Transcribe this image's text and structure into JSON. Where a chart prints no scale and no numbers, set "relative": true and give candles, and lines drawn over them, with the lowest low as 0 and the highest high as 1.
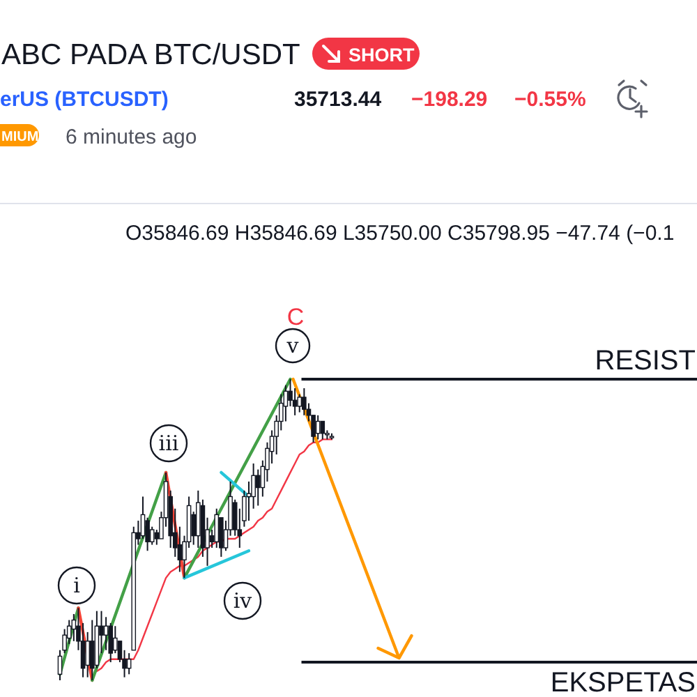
{
  "chart_data": {
    "type": "candlestick",
    "title": "ABC PADA BTC/USDT",
    "relative": true,
    "color": "#131722",
    "categories": [
      null,
      null,
      null,
      null,
      null,
      null,
      null,
      null,
      null,
      null,
      null,
      null,
      null,
      null,
      null,
      null,
      null,
      null,
      null,
      null,
      null,
      null,
      null,
      null,
      null,
      null,
      null,
      null,
      null,
      null,
      null,
      null,
      null,
      null,
      null,
      null,
      null,
      null,
      null,
      null,
      null,
      null,
      null,
      null,
      null,
      null,
      null,
      null,
      null,
      null,
      null,
      null,
      null,
      null,
      null,
      null,
      null,
      null,
      null,
      null
    ],
    "ohlc": [
      [
        0.02,
        0.1,
        0.0,
        0.08
      ],
      [
        0.1,
        0.17,
        0.09,
        0.15
      ],
      [
        0.14,
        0.2,
        0.12,
        0.18
      ],
      [
        0.17,
        0.22,
        0.13,
        0.2
      ],
      [
        0.18,
        0.24,
        0.1,
        0.13
      ],
      [
        0.13,
        0.19,
        0.01,
        0.04
      ],
      [
        0.05,
        0.16,
        0.01,
        0.13
      ],
      [
        0.13,
        0.2,
        0.0,
        0.04
      ],
      [
        0.05,
        0.23,
        0.04,
        0.18
      ],
      [
        0.18,
        0.23,
        0.09,
        0.15
      ],
      [
        0.15,
        0.21,
        0.1,
        0.18
      ],
      [
        0.18,
        0.19,
        0.06,
        0.09
      ],
      [
        0.1,
        0.18,
        0.09,
        0.14
      ],
      [
        0.13,
        0.13,
        0.06,
        0.07
      ],
      [
        0.07,
        0.1,
        0.01,
        0.04
      ],
      [
        0.04,
        0.09,
        0.02,
        0.07
      ],
      [
        0.1,
        0.51,
        0.1,
        0.49
      ],
      [
        0.49,
        0.53,
        0.45,
        0.47
      ],
      [
        0.48,
        0.61,
        0.47,
        0.55
      ],
      [
        0.53,
        0.54,
        0.43,
        0.46
      ],
      [
        0.46,
        0.51,
        0.45,
        0.5
      ],
      [
        0.49,
        0.5,
        0.45,
        0.47
      ],
      [
        0.47,
        0.56,
        0.47,
        0.54
      ],
      [
        0.54,
        0.69,
        0.51,
        0.66
      ],
      [
        0.61,
        0.63,
        0.44,
        0.48
      ],
      [
        0.49,
        0.57,
        0.41,
        0.44
      ],
      [
        0.45,
        0.51,
        0.36,
        0.4
      ],
      [
        0.4,
        0.48,
        0.34,
        0.46
      ],
      [
        0.46,
        0.61,
        0.44,
        0.58
      ],
      [
        0.55,
        0.56,
        0.45,
        0.48
      ],
      [
        0.48,
        0.63,
        0.44,
        0.59
      ],
      [
        0.58,
        0.6,
        0.41,
        0.44
      ],
      [
        0.44,
        0.54,
        0.38,
        0.5
      ],
      [
        0.48,
        0.5,
        0.44,
        0.46
      ],
      [
        0.46,
        0.57,
        0.44,
        0.55
      ],
      [
        0.54,
        0.54,
        0.41,
        0.44
      ],
      [
        0.44,
        0.53,
        0.43,
        0.5
      ],
      [
        0.5,
        0.66,
        0.48,
        0.61
      ],
      [
        0.59,
        0.6,
        0.48,
        0.5
      ],
      [
        0.5,
        0.57,
        0.44,
        0.48
      ],
      [
        0.53,
        0.63,
        0.51,
        0.61
      ],
      [
        0.61,
        0.66,
        0.53,
        0.62
      ],
      [
        0.61,
        0.72,
        0.57,
        0.68
      ],
      [
        0.68,
        0.7,
        0.58,
        0.64
      ],
      [
        0.64,
        0.73,
        0.61,
        0.71
      ],
      [
        0.7,
        0.79,
        0.66,
        0.77
      ],
      [
        0.76,
        0.83,
        0.72,
        0.81
      ],
      [
        0.81,
        0.88,
        0.75,
        0.86
      ],
      [
        0.86,
        0.95,
        0.83,
        0.92
      ],
      [
        0.91,
        0.98,
        0.86,
        0.96
      ],
      [
        0.96,
        1.0,
        0.91,
        0.93
      ],
      [
        0.93,
        0.97,
        0.88,
        0.91
      ],
      [
        0.91,
        0.95,
        0.89,
        0.94
      ],
      [
        0.94,
        0.97,
        0.88,
        0.9
      ],
      [
        0.9,
        0.92,
        0.86,
        0.88
      ],
      [
        0.88,
        0.88,
        0.79,
        0.81
      ],
      [
        0.82,
        0.88,
        0.8,
        0.86
      ],
      [
        0.86,
        0.86,
        0.8,
        0.82
      ],
      [
        0.82,
        0.83,
        0.8,
        0.82
      ],
      [
        0.81,
        0.82,
        0.8,
        0.81
      ]
    ],
    "series": [
      {
        "type": "line",
        "color": "#f23645",
        "values": [
          null,
          null,
          null,
          null,
          null,
          null,
          null,
          null,
          0.03,
          0.04,
          0.06,
          0.07,
          0.07,
          0.07,
          0.07,
          0.07,
          0.07,
          0.1,
          0.14,
          0.18,
          0.22,
          0.26,
          0.3,
          0.34,
          0.36,
          0.37,
          0.38,
          0.38,
          0.39,
          0.4,
          0.41,
          0.43,
          0.44,
          0.45,
          0.46,
          0.46,
          0.47,
          0.47,
          0.47,
          0.48,
          0.49,
          0.5,
          0.51,
          0.53,
          0.54,
          0.56,
          0.57,
          0.6,
          0.63,
          0.66,
          0.69,
          0.72,
          0.75,
          0.76,
          0.78,
          0.79,
          0.79,
          0.8,
          0.8,
          0.8
        ]
      },
      {
        "type": "line",
        "color": "#43a047",
        "values": [
          0.02,
          null,
          null,
          null,
          0.24,
          null,
          null,
          null,
          null,
          null,
          null,
          null,
          null,
          null,
          null,
          null,
          null,
          null,
          null,
          null,
          null,
          null,
          null,
          null,
          null,
          null,
          null,
          null,
          null,
          null,
          null,
          null,
          null,
          null,
          null,
          null,
          null,
          null,
          null,
          null,
          null,
          null,
          null,
          null,
          null,
          null,
          null,
          null,
          null,
          null,
          null,
          null,
          null,
          null,
          null,
          null,
          null,
          null,
          null,
          null
        ]
      },
      {
        "type": "line",
        "color": "#f44336",
        "values": [
          null,
          null,
          null,
          null,
          0.24,
          null,
          null,
          0.0,
          null,
          null,
          null,
          null,
          null,
          null,
          null,
          null,
          null,
          null,
          null,
          null,
          null,
          null,
          null,
          null,
          null,
          null,
          null,
          null,
          null,
          null,
          null,
          null,
          null,
          null,
          null,
          null,
          null,
          null,
          null,
          null,
          null,
          null,
          null,
          null,
          null,
          null,
          null,
          null,
          null,
          null,
          null,
          null,
          null,
          null,
          null,
          null,
          null,
          null,
          null,
          null
        ]
      },
      {
        "type": "line",
        "color": "#43a047",
        "values": [
          null,
          null,
          null,
          null,
          null,
          null,
          null,
          0.0,
          null,
          null,
          null,
          null,
          null,
          null,
          null,
          null,
          null,
          null,
          null,
          null,
          null,
          null,
          null,
          0.69,
          null,
          null,
          null,
          null,
          null,
          null,
          null,
          null,
          null,
          null,
          null,
          null,
          null,
          null,
          null,
          null,
          null,
          null,
          null,
          null,
          null,
          null,
          null,
          null,
          null,
          null,
          null,
          null,
          null,
          null,
          null,
          null,
          null,
          null,
          null,
          null
        ]
      },
      {
        "type": "line",
        "color": "#f44336",
        "values": [
          null,
          null,
          null,
          null,
          null,
          null,
          null,
          null,
          null,
          null,
          null,
          null,
          null,
          null,
          null,
          null,
          null,
          null,
          null,
          null,
          null,
          null,
          null,
          0.69,
          null,
          null,
          null,
          0.34,
          null,
          null,
          null,
          null,
          null,
          null,
          null,
          null,
          null,
          null,
          null,
          null,
          null,
          null,
          null,
          null,
          null,
          null,
          null,
          null,
          null,
          null,
          null,
          null,
          null,
          null,
          null,
          null,
          null,
          null,
          null,
          null
        ]
      },
      {
        "type": "line",
        "color": "#43a047",
        "values": [
          null,
          null,
          null,
          null,
          null,
          null,
          null,
          null,
          null,
          null,
          null,
          null,
          null,
          null,
          null,
          null,
          null,
          null,
          null,
          null,
          null,
          null,
          null,
          null,
          null,
          null,
          null,
          0.34,
          null,
          null,
          null,
          null,
          null,
          null,
          null,
          null,
          null,
          null,
          null,
          null,
          null,
          null,
          null,
          null,
          null,
          null,
          null,
          null,
          null,
          null,
          1.0,
          null,
          null,
          null,
          null,
          null,
          null,
          null,
          null,
          null
        ]
      },
      {
        "type": "line",
        "color": "#26c6da",
        "values": [
          null,
          null,
          null,
          null,
          null,
          null,
          null,
          null,
          null,
          null,
          null,
          null,
          null,
          null,
          null,
          null,
          null,
          null,
          null,
          null,
          null,
          null,
          null,
          null,
          null,
          null,
          null,
          null,
          null,
          null,
          null,
          null,
          null,
          null,
          null,
          0.69,
          null,
          null,
          null,
          null,
          null,
          0.61,
          null,
          null,
          null,
          null,
          null,
          null,
          null,
          null,
          null,
          null,
          null,
          null,
          null,
          null,
          null,
          null,
          null,
          null
        ]
      },
      {
        "type": "line",
        "color": "#26c6da",
        "values": [
          null,
          null,
          null,
          null,
          null,
          null,
          null,
          null,
          null,
          null,
          null,
          null,
          null,
          null,
          null,
          null,
          null,
          null,
          null,
          null,
          null,
          null,
          null,
          null,
          null,
          null,
          null,
          0.34,
          null,
          null,
          null,
          null,
          null,
          null,
          null,
          null,
          null,
          null,
          null,
          null,
          null,
          0.43,
          null,
          null,
          null,
          null,
          null,
          null,
          null,
          null,
          null,
          null,
          null,
          null,
          null,
          null,
          null,
          null,
          null,
          null
        ]
      }
    ],
    "ref_lines": [
      {
        "axis": "y",
        "value": 1.0,
        "label": "RESIST",
        "color": "#131722"
      },
      {
        "axis": "y",
        "value": 0.06,
        "label": "EKSPETAS",
        "color": "#131722"
      }
    ],
    "annotations": [
      "SHORT",
      "erUS (BTCUSDT)",
      "35713.44",
      "−198.29",
      "−0.55%",
      "MIUM",
      "6 minutes ago",
      "O35846.69 H35846.69 L35750.00 C35798.95 −47.74 (−0.1",
      "C",
      "v",
      "iii",
      "iv",
      "i"
    ]
  }
}
